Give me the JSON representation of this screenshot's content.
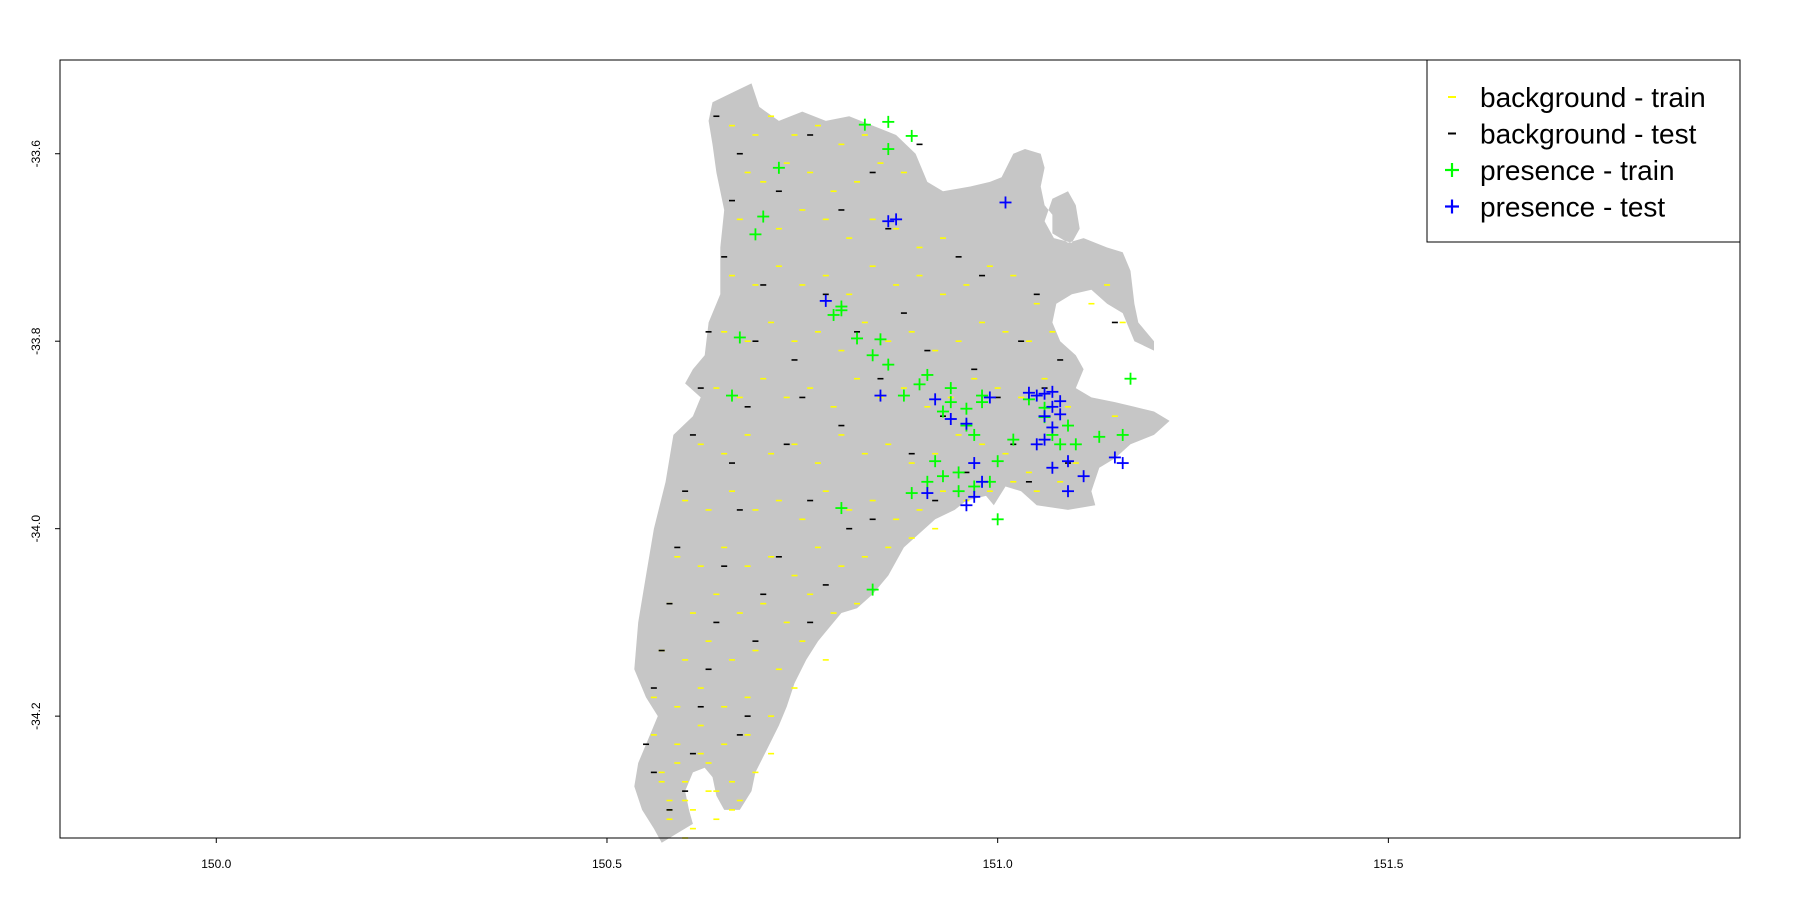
{
  "chart_data": {
    "type": "scatter",
    "title": "",
    "xlabel": "",
    "ylabel": "",
    "xlim": [
      149.8,
      151.95
    ],
    "ylim": [
      -34.33,
      -33.5
    ],
    "x_ticks": [
      150.0,
      150.5,
      151.0,
      151.5
    ],
    "x_tick_labels": [
      "150.0",
      "150.5",
      "151.0",
      "151.5"
    ],
    "y_ticks": [
      -33.6,
      -33.8,
      -34.0,
      -34.2
    ],
    "y_tick_labels": [
      "-33.6",
      "-33.8",
      "-34.0",
      "-34.2"
    ],
    "grid": false,
    "legend_position": "top-right",
    "region_color": "#c6c6c6",
    "region_outline": [
      [
        150.635,
        -33.545
      ],
      [
        150.66,
        -33.535
      ],
      [
        150.685,
        -33.525
      ],
      [
        150.695,
        -33.55
      ],
      [
        150.72,
        -33.565
      ],
      [
        150.75,
        -33.555
      ],
      [
        150.78,
        -33.565
      ],
      [
        150.81,
        -33.56
      ],
      [
        150.84,
        -33.57
      ],
      [
        150.87,
        -33.58
      ],
      [
        150.895,
        -33.6
      ],
      [
        150.91,
        -33.63
      ],
      [
        150.93,
        -33.64
      ],
      [
        150.965,
        -33.635
      ],
      [
        150.99,
        -33.63
      ],
      [
        151.005,
        -33.625
      ],
      [
        151.02,
        -33.6
      ],
      [
        151.035,
        -33.595
      ],
      [
        151.055,
        -33.6
      ],
      [
        151.06,
        -33.615
      ],
      [
        151.055,
        -33.635
      ],
      [
        151.06,
        -33.655
      ],
      [
        151.07,
        -33.665
      ],
      [
        151.07,
        -33.685
      ],
      [
        151.09,
        -33.695
      ],
      [
        151.11,
        -33.69
      ],
      [
        151.14,
        -33.7
      ],
      [
        151.16,
        -33.705
      ],
      [
        151.17,
        -33.725
      ],
      [
        151.175,
        -33.76
      ],
      [
        151.18,
        -33.78
      ],
      [
        151.2,
        -33.8
      ],
      [
        151.2,
        -33.81
      ],
      [
        151.175,
        -33.8
      ],
      [
        151.16,
        -33.77
      ],
      [
        151.14,
        -33.76
      ],
      [
        151.12,
        -33.745
      ],
      [
        151.095,
        -33.75
      ],
      [
        151.075,
        -33.76
      ],
      [
        151.07,
        -33.78
      ],
      [
        151.08,
        -33.8
      ],
      [
        151.1,
        -33.815
      ],
      [
        151.11,
        -33.83
      ],
      [
        151.1,
        -33.85
      ],
      [
        151.12,
        -33.86
      ],
      [
        151.15,
        -33.865
      ],
      [
        151.175,
        -33.87
      ],
      [
        151.2,
        -33.875
      ],
      [
        151.22,
        -33.885
      ],
      [
        151.2,
        -33.9
      ],
      [
        151.17,
        -33.91
      ],
      [
        151.15,
        -33.925
      ],
      [
        151.13,
        -33.935
      ],
      [
        151.12,
        -33.96
      ],
      [
        151.125,
        -33.975
      ],
      [
        151.09,
        -33.98
      ],
      [
        151.05,
        -33.975
      ],
      [
        151.03,
        -33.96
      ],
      [
        151.01,
        -33.955
      ],
      [
        150.995,
        -33.975
      ],
      [
        150.985,
        -33.965
      ],
      [
        150.96,
        -33.97
      ],
      [
        150.945,
        -33.98
      ],
      [
        150.92,
        -33.99
      ],
      [
        150.9,
        -34.005
      ],
      [
        150.88,
        -34.02
      ],
      [
        150.86,
        -34.05
      ],
      [
        150.84,
        -34.07
      ],
      [
        150.82,
        -34.085
      ],
      [
        150.8,
        -34.09
      ],
      [
        150.79,
        -34.1
      ],
      [
        150.77,
        -34.12
      ],
      [
        150.755,
        -34.14
      ],
      [
        150.74,
        -34.165
      ],
      [
        150.73,
        -34.19
      ],
      [
        150.72,
        -34.21
      ],
      [
        150.705,
        -34.235
      ],
      [
        150.69,
        -34.26
      ],
      [
        150.685,
        -34.28
      ],
      [
        150.67,
        -34.3
      ],
      [
        150.65,
        -34.3
      ],
      [
        150.64,
        -34.285
      ],
      [
        150.635,
        -34.265
      ],
      [
        150.625,
        -34.255
      ],
      [
        150.61,
        -34.26
      ],
      [
        150.6,
        -34.28
      ],
      [
        150.605,
        -34.3
      ],
      [
        150.61,
        -34.315
      ],
      [
        150.59,
        -34.325
      ],
      [
        150.57,
        -34.335
      ],
      [
        150.56,
        -34.32
      ],
      [
        150.545,
        -34.3
      ],
      [
        150.535,
        -34.275
      ],
      [
        150.54,
        -34.25
      ],
      [
        150.555,
        -34.22
      ],
      [
        150.565,
        -34.2
      ],
      [
        150.55,
        -34.18
      ],
      [
        150.535,
        -34.15
      ],
      [
        150.54,
        -34.1
      ],
      [
        150.55,
        -34.05
      ],
      [
        150.56,
        -34.0
      ],
      [
        150.575,
        -33.95
      ],
      [
        150.585,
        -33.9
      ],
      [
        150.61,
        -33.88
      ],
      [
        150.62,
        -33.86
      ],
      [
        150.6,
        -33.845
      ],
      [
        150.61,
        -33.83
      ],
      [
        150.625,
        -33.815
      ],
      [
        150.63,
        -33.78
      ],
      [
        150.645,
        -33.75
      ],
      [
        150.645,
        -33.7
      ],
      [
        150.65,
        -33.66
      ],
      [
        150.64,
        -33.62
      ],
      [
        150.635,
        -33.59
      ],
      [
        150.63,
        -33.565
      ]
    ],
    "region_hole": [
      [
        151.09,
        -33.64
      ],
      [
        151.07,
        -33.648
      ],
      [
        151.06,
        -33.672
      ],
      [
        151.072,
        -33.69
      ],
      [
        151.095,
        -33.695
      ],
      [
        151.105,
        -33.68
      ],
      [
        151.1,
        -33.655
      ]
    ],
    "series": [
      {
        "name": "background - train",
        "color": "#ffff00",
        "marker": "dash",
        "x": [
          150.66,
          150.69,
          150.71,
          150.74,
          150.77,
          150.8,
          150.83,
          150.68,
          150.7,
          150.73,
          150.76,
          150.79,
          150.82,
          150.85,
          150.88,
          150.67,
          150.72,
          150.75,
          150.78,
          150.81,
          150.84,
          150.87,
          150.9,
          150.93,
          150.66,
          150.69,
          150.72,
          150.75,
          150.78,
          150.81,
          150.84,
          150.87,
          150.9,
          150.93,
          150.96,
          150.99,
          151.02,
          151.05,
          150.65,
          150.68,
          150.71,
          150.74,
          150.77,
          150.8,
          150.83,
          150.86,
          150.89,
          150.92,
          150.95,
          150.98,
          151.01,
          151.04,
          151.07,
          151.12,
          151.14,
          151.16,
          150.64,
          150.67,
          150.7,
          150.73,
          150.76,
          150.79,
          150.82,
          150.85,
          150.88,
          150.91,
          150.94,
          150.97,
          151.0,
          151.03,
          151.06,
          151.09,
          151.15,
          150.62,
          150.65,
          150.68,
          150.71,
          150.74,
          150.77,
          150.8,
          150.83,
          150.86,
          150.89,
          150.92,
          150.95,
          150.98,
          151.01,
          151.04,
          151.1,
          150.6,
          150.63,
          150.66,
          150.69,
          150.72,
          150.75,
          150.78,
          150.81,
          150.84,
          150.87,
          150.9,
          150.93,
          150.96,
          150.99,
          151.02,
          151.05,
          151.08,
          150.59,
          150.62,
          150.65,
          150.68,
          150.71,
          150.74,
          150.77,
          150.8,
          150.83,
          150.86,
          150.89,
          150.92,
          150.58,
          150.61,
          150.64,
          150.67,
          150.7,
          150.73,
          150.76,
          150.79,
          150.82,
          150.57,
          150.6,
          150.63,
          150.66,
          150.69,
          150.72,
          150.75,
          150.78,
          150.56,
          150.59,
          150.62,
          150.65,
          150.68,
          150.71,
          150.74,
          150.56,
          150.59,
          150.62,
          150.65,
          150.68,
          150.71,
          150.57,
          150.6,
          150.63,
          150.66,
          150.69,
          150.58,
          150.61,
          150.64,
          150.67,
          150.57,
          150.6,
          150.63,
          150.66,
          150.58,
          150.61,
          150.64,
          150.59,
          150.62,
          150.58,
          150.6
        ],
        "y": [
          -33.57,
          -33.58,
          -33.56,
          -33.58,
          -33.57,
          -33.59,
          -33.58,
          -33.62,
          -33.63,
          -33.61,
          -33.62,
          -33.64,
          -33.63,
          -33.61,
          -33.62,
          -33.67,
          -33.68,
          -33.66,
          -33.67,
          -33.69,
          -33.67,
          -33.68,
          -33.7,
          -33.69,
          -33.73,
          -33.74,
          -33.72,
          -33.74,
          -33.73,
          -33.75,
          -33.72,
          -33.74,
          -33.73,
          -33.75,
          -33.74,
          -33.72,
          -33.73,
          -33.76,
          -33.79,
          -33.8,
          -33.78,
          -33.8,
          -33.79,
          -33.81,
          -33.78,
          -33.8,
          -33.79,
          -33.81,
          -33.8,
          -33.78,
          -33.79,
          -33.8,
          -33.79,
          -33.76,
          -33.74,
          -33.78,
          -33.85,
          -33.86,
          -33.84,
          -33.86,
          -33.85,
          -33.87,
          -33.84,
          -33.86,
          -33.85,
          -33.87,
          -33.86,
          -33.84,
          -33.85,
          -33.86,
          -33.84,
          -33.87,
          -33.88,
          -33.91,
          -33.92,
          -33.9,
          -33.92,
          -33.91,
          -33.93,
          -33.9,
          -33.92,
          -33.91,
          -33.93,
          -33.92,
          -33.9,
          -33.91,
          -33.92,
          -33.94,
          -33.93,
          -33.97,
          -33.98,
          -33.96,
          -33.98,
          -33.97,
          -33.99,
          -33.96,
          -33.98,
          -33.97,
          -33.99,
          -33.98,
          -33.96,
          -33.97,
          -33.96,
          -33.95,
          -33.96,
          -33.95,
          -34.03,
          -34.04,
          -34.02,
          -34.04,
          -34.03,
          -34.05,
          -34.02,
          -34.04,
          -34.03,
          -34.02,
          -34.01,
          -34.0,
          -34.08,
          -34.09,
          -34.07,
          -34.09,
          -34.08,
          -34.1,
          -34.07,
          -34.09,
          -34.08,
          -34.13,
          -34.14,
          -34.12,
          -34.14,
          -34.13,
          -34.15,
          -34.12,
          -34.14,
          -34.18,
          -34.19,
          -34.17,
          -34.19,
          -34.18,
          -34.2,
          -34.17,
          -34.22,
          -34.23,
          -34.21,
          -34.23,
          -34.22,
          -34.24,
          -34.26,
          -34.27,
          -34.25,
          -34.27,
          -34.26,
          -34.29,
          -34.3,
          -34.28,
          -34.29,
          -34.27,
          -34.29,
          -34.28,
          -34.3,
          -34.31,
          -34.32,
          -34.31,
          -34.25,
          -34.24,
          -34.3,
          -34.33
        ]
      },
      {
        "name": "background - test",
        "color": "#000000",
        "marker": "dash",
        "x": [
          150.64,
          150.67,
          150.76,
          150.84,
          150.9,
          150.66,
          150.72,
          150.8,
          150.86,
          150.95,
          150.65,
          150.7,
          150.78,
          150.88,
          150.98,
          151.05,
          150.63,
          150.69,
          150.74,
          150.82,
          150.91,
          150.97,
          151.03,
          151.08,
          151.15,
          150.62,
          150.68,
          150.75,
          150.85,
          150.93,
          151.0,
          151.06,
          150.61,
          150.66,
          150.73,
          150.8,
          150.89,
          150.96,
          151.02,
          151.09,
          150.6,
          150.67,
          150.76,
          150.84,
          150.92,
          151.04,
          150.59,
          150.65,
          150.72,
          150.81,
          150.58,
          150.64,
          150.7,
          150.78,
          150.57,
          150.63,
          150.69,
          150.76,
          150.56,
          150.62,
          150.68,
          150.55,
          150.61,
          150.67,
          150.56,
          150.6,
          150.58
        ],
        "y": [
          -33.56,
          -33.6,
          -33.58,
          -33.62,
          -33.59,
          -33.65,
          -33.64,
          -33.66,
          -33.68,
          -33.71,
          -33.71,
          -33.74,
          -33.75,
          -33.77,
          -33.73,
          -33.75,
          -33.79,
          -33.8,
          -33.82,
          -33.79,
          -33.81,
          -33.83,
          -33.8,
          -33.82,
          -33.78,
          -33.85,
          -33.87,
          -33.86,
          -33.84,
          -33.88,
          -33.86,
          -33.85,
          -33.9,
          -33.93,
          -33.91,
          -33.89,
          -33.92,
          -33.94,
          -33.91,
          -33.93,
          -33.96,
          -33.98,
          -33.97,
          -33.99,
          -33.97,
          -33.95,
          -34.02,
          -34.04,
          -34.03,
          -34.0,
          -34.08,
          -34.1,
          -34.07,
          -34.06,
          -34.13,
          -34.15,
          -34.12,
          -34.1,
          -34.17,
          -34.19,
          -34.2,
          -34.23,
          -34.24,
          -34.22,
          -34.26,
          -34.28,
          -34.3
        ]
      },
      {
        "name": "presence - train",
        "color": "#00ff00",
        "marker": "plus",
        "x": [
          150.83,
          150.86,
          150.89,
          150.86,
          150.72,
          150.7,
          150.69,
          150.8,
          150.79,
          150.85,
          150.67,
          150.66,
          150.8,
          150.82,
          150.84,
          150.86,
          150.91,
          150.9,
          150.88,
          150.94,
          150.96,
          150.93,
          150.98,
          150.92,
          150.95,
          151.0,
          151.04,
          151.06,
          151.07,
          151.09,
          151.1,
          151.13,
          151.16,
          151.17,
          151.06,
          151.08,
          150.97,
          150.99,
          150.95,
          150.93,
          150.91,
          150.89,
          150.94,
          150.96,
          150.98,
          150.97,
          150.8,
          150.84,
          151.0,
          151.02
        ],
        "y": [
          -33.569,
          -33.566,
          -33.581,
          -33.595,
          -33.615,
          -33.667,
          -33.686,
          -33.763,
          -33.772,
          -33.798,
          -33.796,
          -33.858,
          -33.767,
          -33.797,
          -33.815,
          -33.825,
          -33.836,
          -33.846,
          -33.858,
          -33.85,
          -33.872,
          -33.875,
          -33.858,
          -33.928,
          -33.94,
          -33.928,
          -33.862,
          -33.881,
          -33.9,
          -33.89,
          -33.91,
          -33.902,
          -33.9,
          -33.84,
          -33.871,
          -33.91,
          -33.955,
          -33.95,
          -33.96,
          -33.944,
          -33.95,
          -33.962,
          -33.865,
          -33.89,
          -33.865,
          -33.9,
          -33.978,
          -34.065,
          -33.99,
          -33.905
        ]
      },
      {
        "name": "presence - test",
        "color": "#0000ff",
        "marker": "plus",
        "x": [
          151.01,
          150.87,
          150.86,
          150.78,
          150.85,
          150.92,
          150.94,
          150.96,
          150.99,
          151.04,
          151.05,
          151.06,
          151.07,
          151.08,
          151.07,
          151.06,
          151.07,
          151.08,
          151.06,
          151.05,
          151.07,
          151.09,
          151.11,
          151.15,
          151.16,
          151.09,
          150.97,
          150.98,
          150.91,
          150.97,
          150.96
        ],
        "y": [
          -33.652,
          -33.67,
          -33.672,
          -33.757,
          -33.858,
          -33.862,
          -33.883,
          -33.888,
          -33.86,
          -33.855,
          -33.858,
          -33.856,
          -33.854,
          -33.864,
          -33.87,
          -33.88,
          -33.892,
          -33.878,
          -33.905,
          -33.91,
          -33.935,
          -33.928,
          -33.944,
          -33.924,
          -33.93,
          -33.96,
          -33.93,
          -33.95,
          -33.962,
          -33.966,
          -33.975
        ]
      }
    ]
  },
  "legend": {
    "items": [
      {
        "symbol": "-",
        "label": "background - train",
        "color": "#ffff00"
      },
      {
        "symbol": "-",
        "label": "background - test",
        "color": "#000000"
      },
      {
        "symbol": "+",
        "label": "presence - train",
        "color": "#00ff00"
      },
      {
        "symbol": "+",
        "label": "presence - test",
        "color": "#0000ff"
      }
    ]
  }
}
